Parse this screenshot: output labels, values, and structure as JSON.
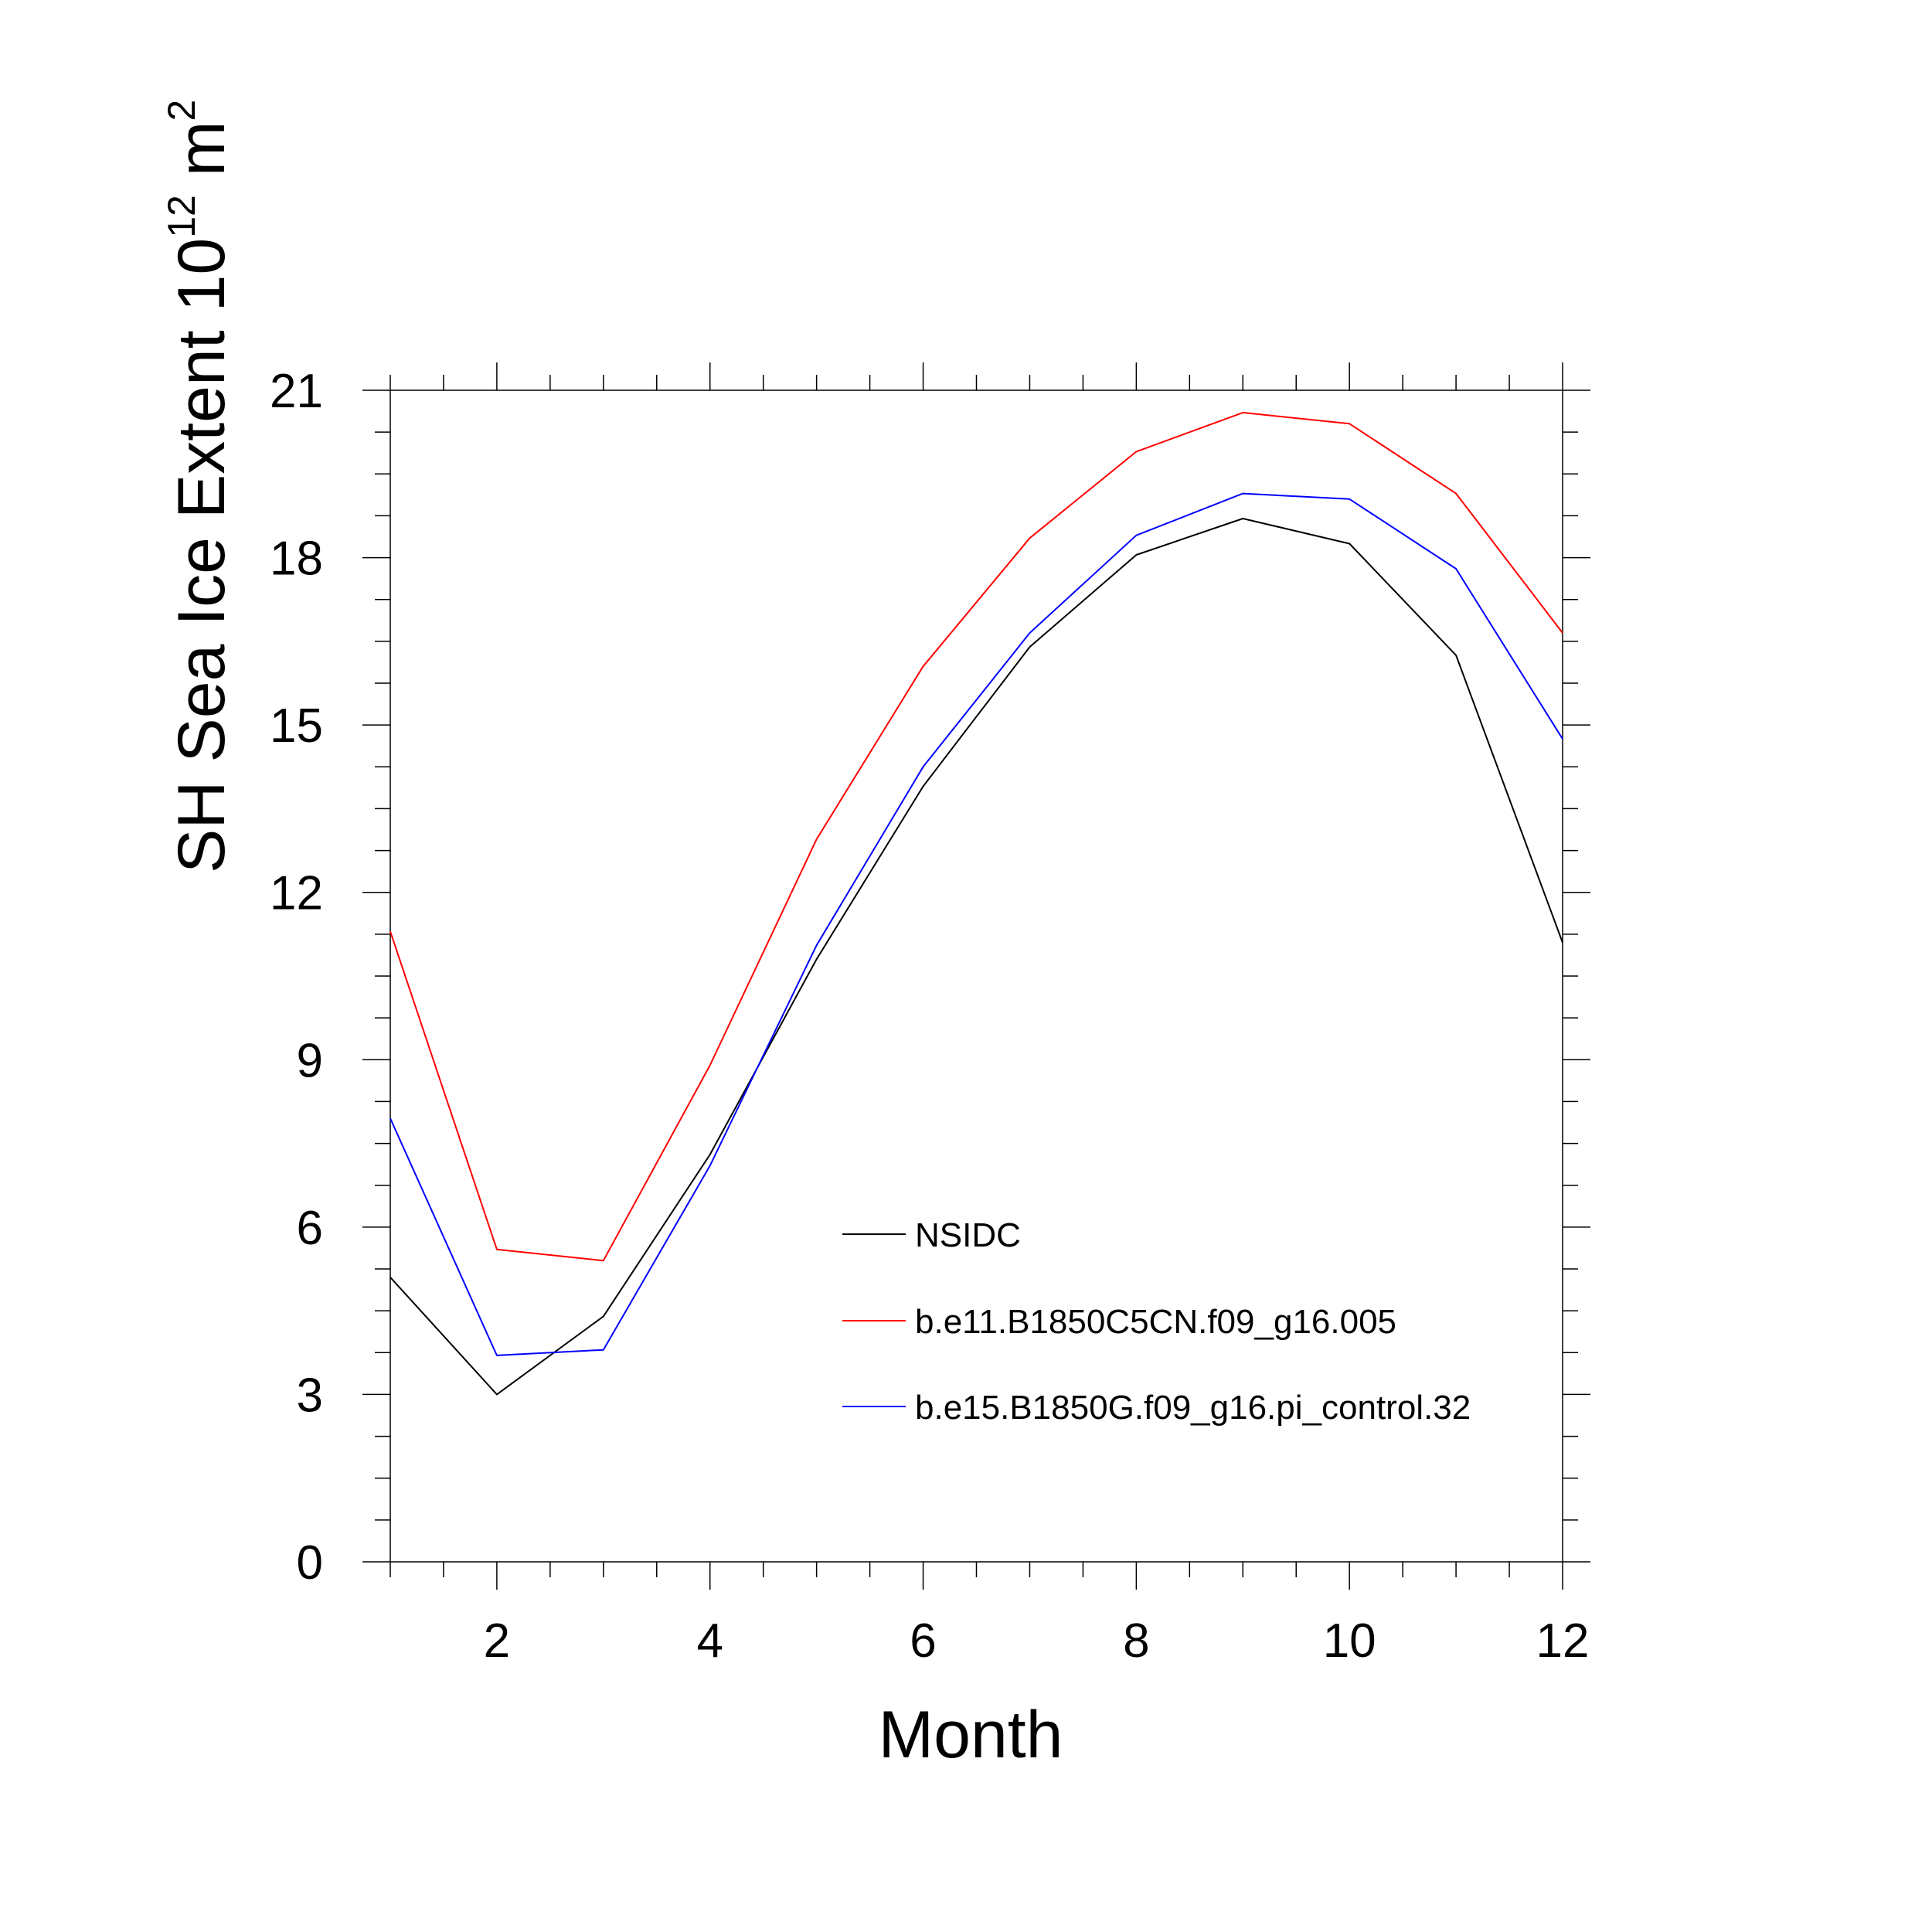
{
  "chart_data": {
    "type": "line",
    "xlabel": "Month",
    "ylabel": {
      "text": "SH Sea Ice Extent 10",
      "exponent": "12",
      "unit": " m",
      "unit_exponent": "2"
    },
    "xlim": [
      1,
      12
    ],
    "ylim": [
      0,
      21
    ],
    "x_ticks": [
      2,
      4,
      6,
      8,
      10,
      12
    ],
    "y_ticks": [
      0,
      3,
      6,
      9,
      12,
      15,
      18,
      21
    ],
    "grid": false,
    "legend_position": "lower-right",
    "x": [
      1,
      2,
      3,
      4,
      5,
      6,
      7,
      8,
      9,
      10,
      11,
      12
    ],
    "series": [
      {
        "name": "NSIDC",
        "color": "#000000",
        "values": [
          5.1,
          3.0,
          4.4,
          7.3,
          10.8,
          13.9,
          16.4,
          18.05,
          18.7,
          18.25,
          16.25,
          11.1
        ]
      },
      {
        "name": "b.e11.B1850C5CN.f09_g16.005",
        "color": "#ff0000",
        "values": [
          11.3,
          5.6,
          5.4,
          8.9,
          12.95,
          16.05,
          18.35,
          19.9,
          20.6,
          20.4,
          19.15,
          16.65
        ]
      },
      {
        "name": "b.e15.B1850G.f09_g16.pi_control.32",
        "color": "#0000ff",
        "values": [
          7.95,
          3.7,
          3.8,
          7.1,
          11.05,
          14.25,
          16.65,
          18.4,
          19.15,
          19.05,
          17.8,
          14.75
        ]
      }
    ]
  }
}
